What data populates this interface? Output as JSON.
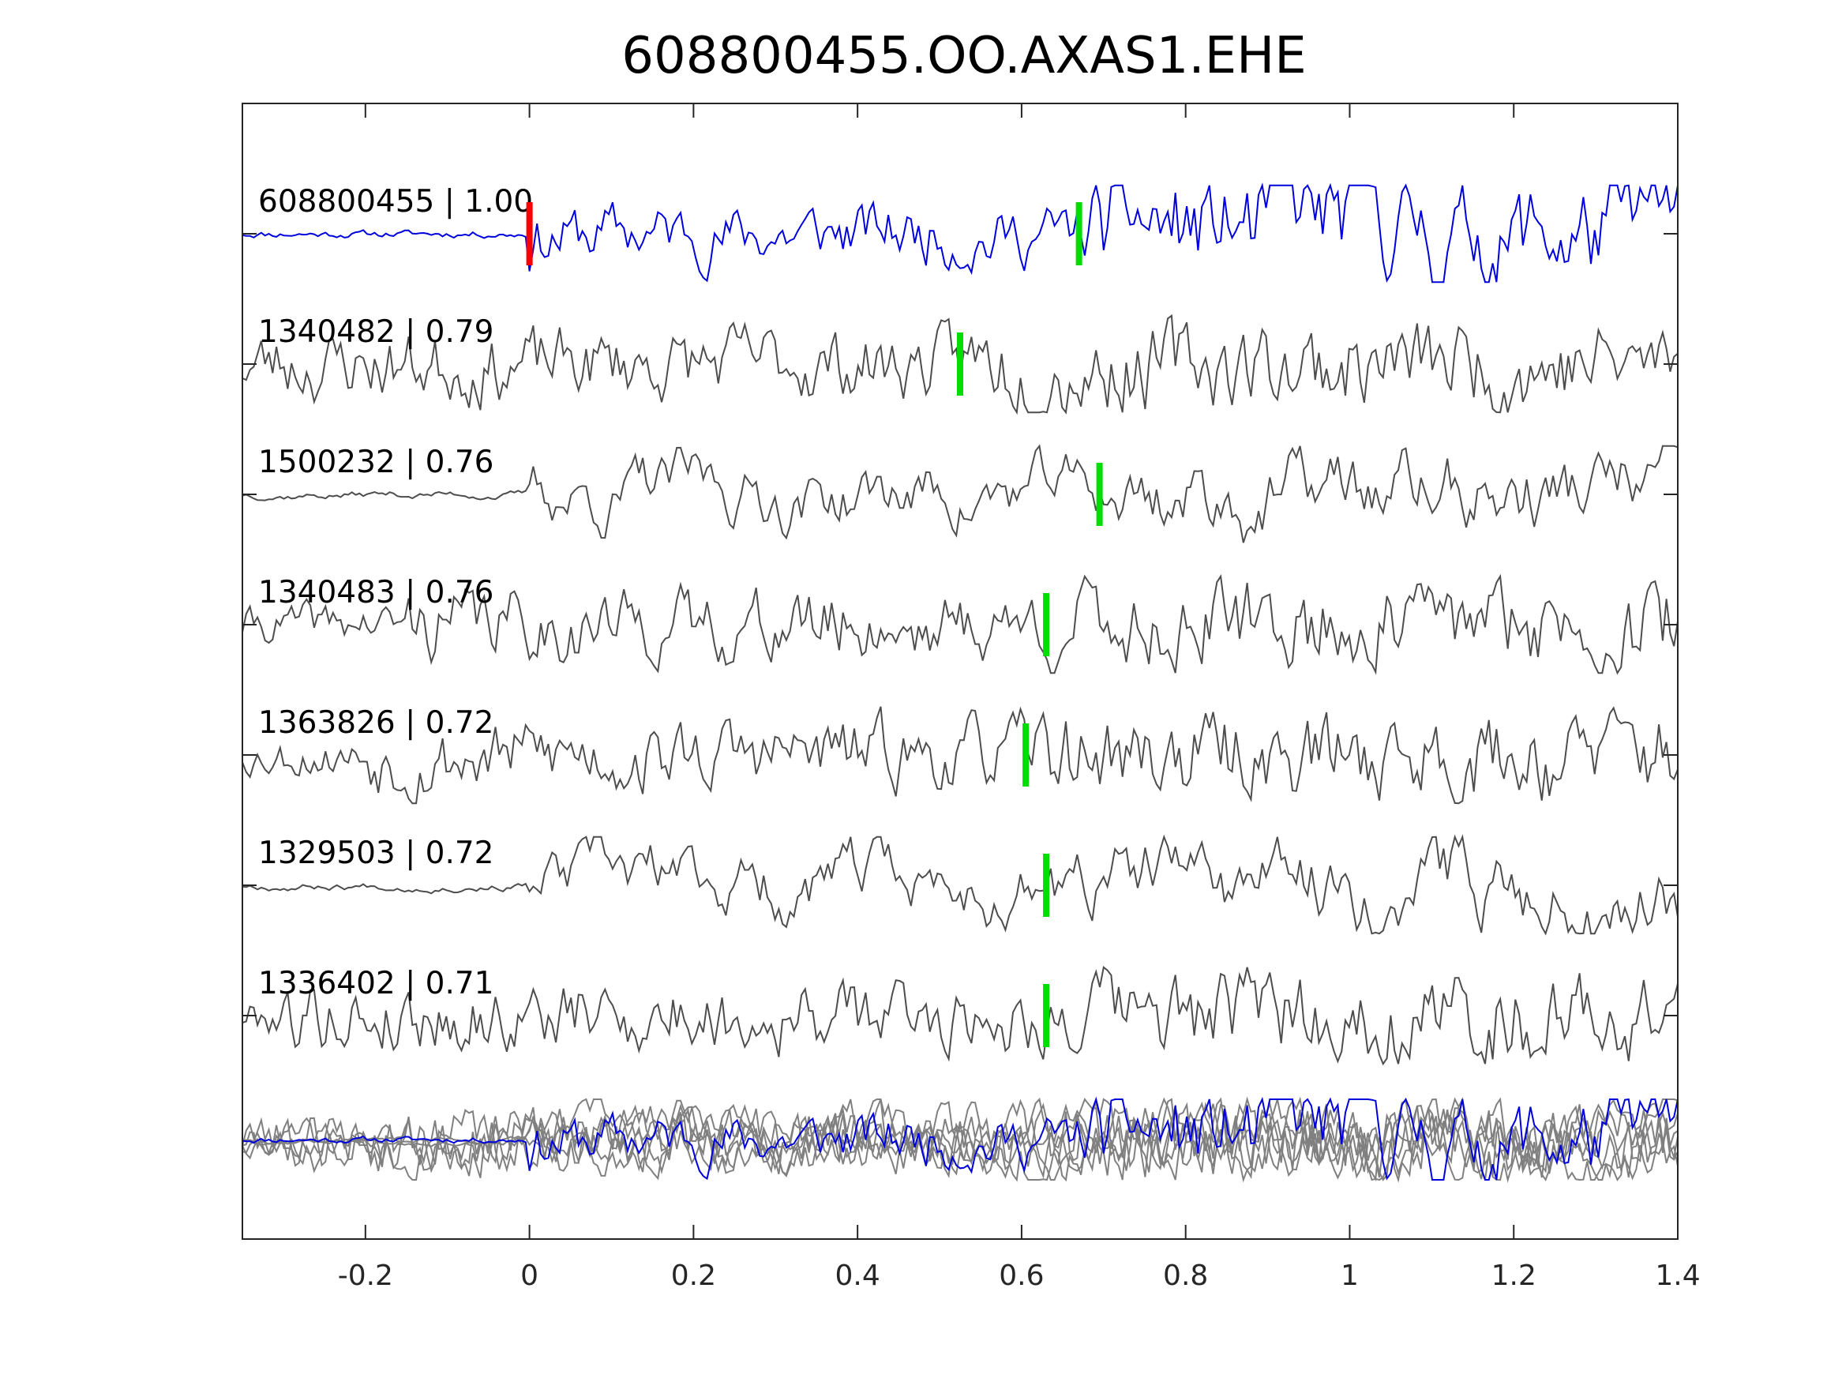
{
  "chart_data": {
    "type": "line",
    "title": "608800455.OO.AXAS1.EHE",
    "xlabel": "",
    "ylabel": "",
    "xlim": [
      -0.35,
      1.4
    ],
    "x_ticks": [
      -0.2,
      0,
      0.2,
      0.4,
      0.6,
      0.8,
      1,
      1.2,
      1.4
    ],
    "x_tick_labels": [
      "-0.2",
      "0",
      "0.2",
      "0.4",
      "0.6",
      "0.8",
      "1",
      "1.2",
      "1.4"
    ],
    "grid": false,
    "colors": {
      "master": "#0000dd",
      "template": "#4d4d4d",
      "stack": "#808080",
      "p_pick": "#ff0000",
      "s_pick": "#00dd00",
      "axes": "#262626"
    },
    "series": [
      {
        "name": "608800455",
        "label": "608800455 | 1.00",
        "cc": 1.0,
        "role": "master",
        "p_pick": 0.0,
        "s_pick": 0.67,
        "onset": 0.0,
        "seed": 11,
        "style": "mixed"
      },
      {
        "name": "1340482",
        "label": "1340482 | 0.79",
        "cc": 0.79,
        "role": "template",
        "s_pick": 0.525,
        "onset": -0.35,
        "seed": 23,
        "style": "noisy"
      },
      {
        "name": "1500232",
        "label": "1500232 | 0.76",
        "cc": 0.76,
        "role": "template",
        "s_pick": 0.695,
        "onset": 0.0,
        "seed": 37,
        "style": "smooth"
      },
      {
        "name": "1340483",
        "label": "1340483 | 0.76",
        "cc": 0.76,
        "role": "template",
        "s_pick": 0.63,
        "onset": -0.15,
        "seed": 41,
        "style": "noisy"
      },
      {
        "name": "1363826",
        "label": "1363826 | 0.72",
        "cc": 0.72,
        "role": "template",
        "s_pick": 0.605,
        "onset": -0.2,
        "seed": 53,
        "style": "noisy"
      },
      {
        "name": "1329503",
        "label": "1329503 | 0.72",
        "cc": 0.72,
        "role": "template",
        "s_pick": 0.63,
        "onset": 0.0,
        "seed": 67,
        "style": "smooth"
      },
      {
        "name": "1336402",
        "label": "1336402 | 0.71",
        "cc": 0.71,
        "role": "template",
        "s_pick": 0.63,
        "onset": -0.3,
        "seed": 79,
        "style": "noisy"
      }
    ]
  }
}
